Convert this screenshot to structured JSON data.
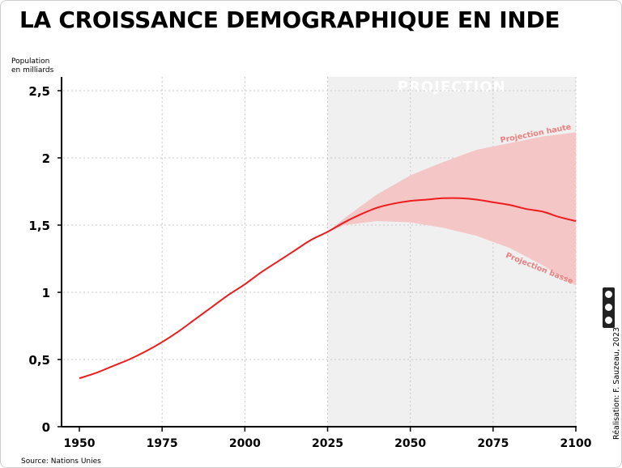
{
  "title": "LA CROISSANCE DEMOGRAPHIQUE EN INDE",
  "source": "Source: Nations Unies",
  "credit": "Réalisation: F. Sauzeau, 2023",
  "license_icon": "cc-by-nc-sa-icon",
  "colors": {
    "line": "#ee1c1c",
    "band": "#f5c6c6",
    "projection_bg": "#f0f0f0",
    "band_label": "#ee7f7f"
  },
  "chart_data": {
    "type": "line",
    "title": "LA CROISSANCE DEMOGRAPHIQUE EN INDE",
    "ylabel": "Population\nen milliards",
    "xlabel": "",
    "xlim": [
      1950,
      2100
    ],
    "ylim": [
      0,
      2.5
    ],
    "x_ticks": [
      "1950",
      "1975",
      "2000",
      "2025",
      "2050",
      "2075",
      "2100"
    ],
    "y_ticks": [
      "0",
      "0,5",
      "1",
      "1,5",
      "2",
      "2,5"
    ],
    "grid": true,
    "projection_region": {
      "label": "PROJECTION",
      "x_start": 2025,
      "x_end": 2100
    },
    "series": [
      {
        "role": "estimate",
        "x": [
          1950,
          1955,
          1960,
          1965,
          1970,
          1975,
          1980,
          1985,
          1990,
          1995,
          2000,
          2005,
          2010,
          2015,
          2020,
          2025,
          2030,
          2035,
          2040,
          2045,
          2050,
          2055,
          2060,
          2065,
          2070,
          2075,
          2080,
          2085,
          2090,
          2095,
          2100
        ],
        "y": [
          0.36,
          0.4,
          0.45,
          0.5,
          0.56,
          0.63,
          0.71,
          0.8,
          0.89,
          0.98,
          1.06,
          1.15,
          1.23,
          1.31,
          1.39,
          1.45,
          1.52,
          1.58,
          1.63,
          1.66,
          1.68,
          1.69,
          1.7,
          1.7,
          1.69,
          1.67,
          1.65,
          1.62,
          1.6,
          1.56,
          1.53
        ]
      },
      {
        "name": "Projection haute",
        "x": [
          2025,
          2030,
          2040,
          2050,
          2060,
          2070,
          2080,
          2090,
          2100
        ],
        "y": [
          1.45,
          1.55,
          1.73,
          1.87,
          1.97,
          2.06,
          2.11,
          2.16,
          2.19
        ]
      },
      {
        "name": "Projection basse",
        "x": [
          2025,
          2030,
          2040,
          2050,
          2060,
          2070,
          2080,
          2090,
          2100
        ],
        "y": [
          1.45,
          1.5,
          1.53,
          1.52,
          1.48,
          1.42,
          1.33,
          1.2,
          1.05
        ]
      }
    ]
  }
}
